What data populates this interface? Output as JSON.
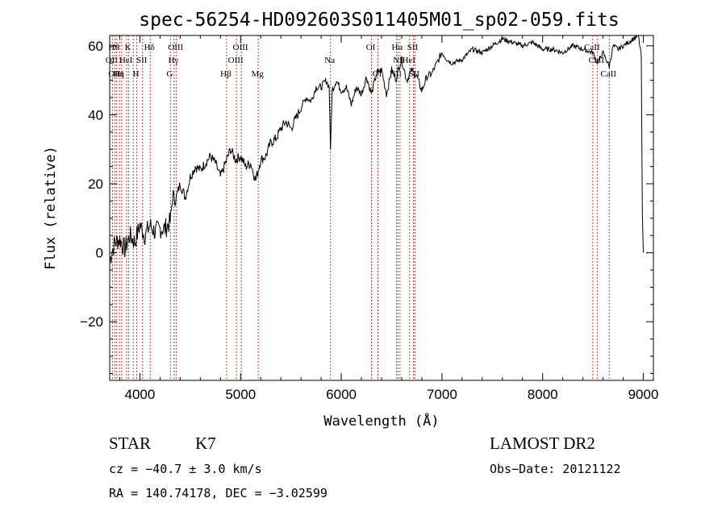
{
  "chart_data": {
    "type": "line",
    "title": "spec-56254-HD092603S011405M01_sp02-059.fits",
    "xlabel": "Wavelength (Å)",
    "ylabel": "Flux (relative)",
    "xlim": [
      3700,
      9100
    ],
    "ylim": [
      -37,
      63
    ],
    "xticks": [
      4000,
      5000,
      6000,
      7000,
      8000,
      9000
    ],
    "yticks": [
      -20,
      0,
      20,
      40,
      60
    ],
    "grid": false,
    "series": [
      {
        "values_note": "",
        "x": [
          3700,
          3750,
          3800,
          3850,
          3900,
          3950,
          4000,
          4050,
          4100,
          4150,
          4200,
          4250,
          4300,
          4330,
          4350,
          4400,
          4450,
          4500,
          4550,
          4600,
          4650,
          4700,
          4750,
          4800,
          4850,
          4900,
          4950,
          5000,
          5050,
          5100,
          5150,
          5200,
          5250,
          5300,
          5350,
          5400,
          5450,
          5500,
          5550,
          5600,
          5650,
          5700,
          5750,
          5800,
          5850,
          5880,
          5893,
          5910,
          5950,
          6000,
          6050,
          6100,
          6150,
          6200,
          6250,
          6300,
          6350,
          6400,
          6450,
          6500,
          6550,
          6562,
          6600,
          6650,
          6700,
          6750,
          6800,
          6850,
          6900,
          6950,
          7000,
          7050,
          7100,
          7200,
          7300,
          7400,
          7500,
          7600,
          7700,
          7800,
          7900,
          8000,
          8100,
          8200,
          8300,
          8400,
          8500,
          8542,
          8600,
          8662,
          8700,
          8750,
          8800,
          8850,
          8900,
          8950,
          8980,
          8990,
          9000
        ],
        "y": [
          -2,
          3,
          4,
          1,
          5,
          3,
          8,
          5,
          8,
          6,
          7,
          7,
          9,
          17,
          15,
          20,
          16,
          22,
          25,
          24,
          26,
          28,
          26,
          22,
          26,
          30,
          27,
          28,
          25,
          26,
          21,
          27,
          28,
          32,
          33,
          36,
          38,
          36,
          39,
          42,
          45,
          44,
          48,
          48,
          50,
          48,
          30,
          47,
          50,
          47,
          48,
          43,
          48,
          46,
          51,
          46,
          52,
          53,
          46,
          53,
          50,
          53,
          56,
          50,
          53,
          51,
          47,
          51,
          52,
          55,
          58,
          56,
          55,
          56,
          59,
          58,
          60,
          62,
          61,
          60,
          61,
          59,
          59,
          58,
          60,
          59,
          58,
          55,
          58,
          54,
          60,
          59,
          60,
          61,
          62,
          63,
          57,
          12,
          0
        ]
      }
    ],
    "line_markers": [
      {
        "wl": 3727,
        "label": "OII",
        "row": 2
      },
      {
        "wl": 3750,
        "label": "Hθ",
        "row": 1
      },
      {
        "wl": 3770,
        "label": "OIII",
        "row": 3
      },
      {
        "wl": 3798,
        "label": "Hη",
        "row": 3
      },
      {
        "wl": 3820,
        "label": "",
        "row": 0
      },
      {
        "wl": 3869,
        "label": "HeI",
        "row": 2
      },
      {
        "wl": 3889,
        "label": "K",
        "row": 1
      },
      {
        "wl": 3934,
        "label": "",
        "row": 0
      },
      {
        "wl": 3969,
        "label": "H",
        "row": 3
      },
      {
        "wl": 4026,
        "label": "SII",
        "row": 2
      },
      {
        "wl": 4102,
        "label": "Hδ",
        "row": 1
      },
      {
        "wl": 4304,
        "label": "G",
        "row": 3
      },
      {
        "wl": 4340,
        "label": "Hγ",
        "row": 2
      },
      {
        "wl": 4363,
        "label": "OIII",
        "row": 1
      },
      {
        "wl": 4861,
        "label": "Hβ",
        "row": 3
      },
      {
        "wl": 4959,
        "label": "OIII",
        "row": 2
      },
      {
        "wl": 5007,
        "label": "OIII",
        "row": 1
      },
      {
        "wl": 5175,
        "label": "Mg",
        "row": 3
      },
      {
        "wl": 5893,
        "label": "Na",
        "row": 2
      },
      {
        "wl": 6300,
        "label": "OI",
        "row": 1
      },
      {
        "wl": 6364,
        "label": "OI",
        "row": 3
      },
      {
        "wl": 6548,
        "label": "NII",
        "row": 3
      },
      {
        "wl": 6563,
        "label": "Hα",
        "row": 1
      },
      {
        "wl": 6583,
        "label": "NII",
        "row": 2
      },
      {
        "wl": 6678,
        "label": "HeI",
        "row": 2
      },
      {
        "wl": 6716,
        "label": "SII",
        "row": 1
      },
      {
        "wl": 6731,
        "label": "SII",
        "row": 3
      },
      {
        "wl": 8498,
        "label": "CaII",
        "row": 1
      },
      {
        "wl": 8542,
        "label": "CaII",
        "row": 2
      },
      {
        "wl": 8662,
        "label": "CaII",
        "row": 3
      }
    ]
  },
  "info": {
    "class": "STAR",
    "subclass": "K7",
    "survey": "LAMOST DR2",
    "cz": "cz = −40.7 ± 3.0 km/s",
    "obsdate": "Obs−Date: 20121122",
    "radec": "RA = 140.74178, DEC =  −3.02599"
  }
}
